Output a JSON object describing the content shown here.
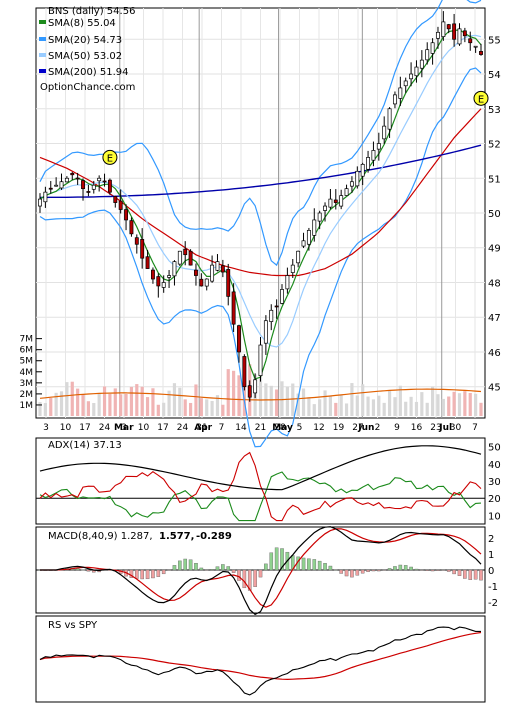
{
  "chart_data": [
    {
      "type": "line",
      "panel": "price",
      "legend": {
        "title": "BNS (daily) 54.56",
        "entries": [
          {
            "label": "SMA(8) 55.04",
            "color": "#1b8a1b"
          },
          {
            "label": "SMA(20) 54.73",
            "color": "#3399ff"
          },
          {
            "label": "SMA(50) 53.02",
            "color": "#99ccff"
          },
          {
            "label": "SMA(200) 51.94",
            "color": "#0000cc"
          }
        ],
        "source": "OptionChance.com"
      },
      "y_ticks": [
        "55",
        "54",
        "53",
        "52",
        "51",
        "50",
        "49",
        "48",
        "47",
        "46",
        "45"
      ],
      "ylim": [
        44.1,
        55.9
      ],
      "volume_ticks": [
        "7M",
        "6M",
        "5M",
        "4M",
        "3M",
        "2M",
        "1M"
      ],
      "volume_max": 7.6,
      "x_tick_labels": [
        "3",
        "10",
        "17",
        "24",
        "3",
        "10",
        "17",
        "24",
        "31",
        "7",
        "14",
        "21",
        "28",
        "5",
        "12",
        "19",
        "27",
        "2",
        "9",
        "16",
        "23",
        "30",
        "7"
      ],
      "month_labels": [
        "Mar",
        "Apr",
        "May",
        "Jun",
        "Jul"
      ],
      "earnings_markers": [
        {
          "label": "E",
          "bar": 13,
          "price": 51.6
        },
        {
          "label": "E",
          "bar": 82,
          "price": 53.3
        }
      ],
      "closes": [
        50.4,
        50.6,
        50.7,
        50.8,
        50.9,
        51.0,
        51.1,
        51.0,
        50.7,
        50.6,
        50.8,
        51.0,
        50.9,
        50.6,
        50.3,
        50.1,
        49.8,
        49.4,
        49.1,
        48.7,
        48.4,
        48.1,
        47.9,
        48.0,
        48.2,
        48.6,
        48.9,
        48.8,
        48.5,
        48.2,
        47.9,
        48.1,
        48.5,
        48.6,
        48.3,
        47.6,
        46.8,
        46.0,
        45.0,
        44.7,
        45.2,
        46.2,
        46.9,
        47.2,
        47.3,
        47.8,
        48.2,
        48.5,
        48.9,
        49.2,
        49.5,
        49.8,
        50.0,
        50.2,
        50.4,
        50.3,
        50.5,
        50.7,
        50.9,
        51.2,
        51.4,
        51.6,
        51.8,
        52.0,
        52.5,
        53.0,
        53.4,
        53.6,
        53.8,
        54.0,
        54.2,
        54.4,
        54.7,
        54.9,
        55.2,
        55.5,
        55.3,
        55.0,
        55.3,
        55.1,
        54.9,
        54.8,
        54.56
      ]
    },
    {
      "type": "line",
      "panel": "adx",
      "title": "ADX(14) 37.13",
      "y_ticks": [
        "50",
        "40",
        "30",
        "20",
        "10"
      ],
      "ylim": [
        5,
        55
      ]
    },
    {
      "type": "line",
      "panel": "macd",
      "title": "MACD(8,40,9) 1.287,",
      "values": [
        {
          "label": "1.577,",
          "color": "#cc0000"
        },
        {
          "label": "-0.289",
          "color": "#0000cc"
        }
      ],
      "y_ticks": [
        "2",
        "1",
        "0",
        "-1",
        "-2"
      ],
      "ylim": [
        -2.7,
        2.7
      ]
    },
    {
      "type": "line",
      "panel": "rs",
      "title": "RS vs SPY"
    }
  ]
}
